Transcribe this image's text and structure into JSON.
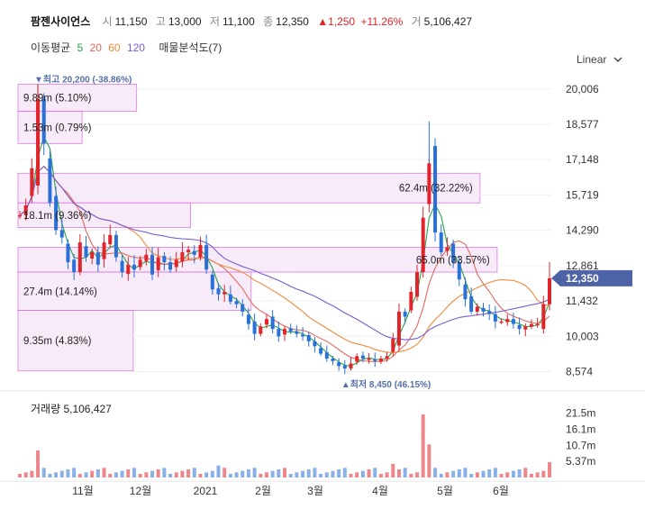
{
  "header": {
    "stock_name": "팜젠사이언스",
    "open_label": "시",
    "open": "11,150",
    "high_label": "고",
    "high": "13,000",
    "low_label": "저",
    "low": "11,100",
    "close_label": "종",
    "close": "12,350",
    "change": "▲1,250",
    "change_pct": "+11.26%",
    "volume_label": "거",
    "volume": "5,106,427"
  },
  "indicators": {
    "title": "이동평균",
    "ma5": "5",
    "ma20": "20",
    "ma60": "60",
    "ma120": "120",
    "tool": "매물분석도(7)"
  },
  "scale_label": "Linear",
  "colors": {
    "up": "#e0242b",
    "down": "#2970d8",
    "ma5": "#27a34b",
    "ma20": "#e46a5e",
    "ma60": "#ee8c3a",
    "ma120": "#7a5bd6",
    "zone_fill": "#f8e9f9",
    "zone_border": "#d86bdc",
    "price_tag": "#4e63a5"
  },
  "chart_data": {
    "type": "candlestick",
    "y_ticks": [
      "20,006",
      "18,577",
      "17,148",
      "15,719",
      "14,290",
      "12,861",
      "11,432",
      "10,003",
      "8,574"
    ],
    "y_tick_values": [
      20006,
      18577,
      17148,
      15719,
      14290,
      12861,
      11432,
      10003,
      8574
    ],
    "x_ticks": [
      "11월",
      "12월",
      "2021",
      "2월",
      "3월",
      "4월",
      "5월",
      "6월"
    ],
    "current_price": "12,350",
    "current_price_value": 12350,
    "max_label": "최고 20,200 (-38.86%)",
    "min_label": "최저 8,450 (46.15%)",
    "volume_profile": [
      {
        "label": "9.89m (5.10%)",
        "price_low": 19100,
        "price_high": 20200
      },
      {
        "label": "1.53m (0.79%)",
        "price_low": 17800,
        "price_high": 19100
      },
      {
        "label": "62.4m (32.22%)",
        "price_low": 15400,
        "price_high": 16600
      },
      {
        "label": "18.1m (9.36%)",
        "price_low": 14400,
        "price_high": 15400
      },
      {
        "label": "65.0m (33.57%)",
        "price_low": 12600,
        "price_high": 13600
      },
      {
        "label": "27.4m (14.14%)",
        "price_low": 11050,
        "price_high": 12600
      },
      {
        "label": "9.35m (4.83%)",
        "price_low": 8600,
        "price_high": 11050
      }
    ],
    "volume_title": "거래량",
    "volume_value": "5,106,427",
    "volume_ticks": [
      "21.5m",
      "16.1m",
      "10.7m",
      "5.37m"
    ],
    "volume_tick_values": [
      21.5,
      16.1,
      10.7,
      5.37
    ],
    "price_path": [
      14900,
      15300,
      16800,
      19600,
      17800,
      15400,
      14300,
      14000,
      13000,
      12600,
      13800,
      13200,
      13400,
      12900,
      13800,
      14100,
      13200,
      12600,
      12900,
      12700,
      13100,
      13300,
      12500,
      13200,
      13000,
      12700,
      13100,
      13400,
      13500,
      13300,
      13700,
      12700,
      11900,
      11700,
      11800,
      11400,
      11300,
      11000,
      10500,
      10100,
      10400,
      10700,
      10300,
      10000,
      10300,
      10200,
      10100,
      10000,
      9800,
      9600,
      9300,
      9100,
      9000,
      8800,
      8700,
      8900,
      9200,
      9100,
      9100,
      9000,
      9100,
      9200,
      9900,
      11000,
      10800,
      11800,
      12600,
      14800,
      17000,
      14200,
      13400,
      13600,
      13000,
      12300,
      11500,
      11000,
      11200,
      11000,
      10900,
      10600,
      10600,
      10700,
      10500,
      10300,
      10400,
      10500,
      10500,
      11300,
      12350
    ]
  }
}
